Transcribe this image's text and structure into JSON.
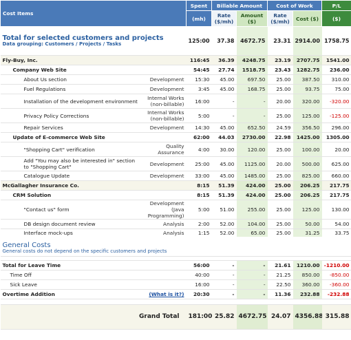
{
  "header": {
    "cost_items": "Cost Items",
    "spent": "Spent",
    "spent_unit": "(mh)",
    "billable": "Billable Amount",
    "cost_of_work": "Cost of Work",
    "pl": "P/L",
    "b_rate": "Rate ($/mh)",
    "b_amount": "Amount ($)",
    "c_rate": "Rate ($/mh)",
    "c_cost": "Cost ($)",
    "pl_unit": "($)"
  },
  "total": {
    "title": "Total for selected customers and projects",
    "subtitle": "Data grouping: Customers / Projects / Tasks",
    "values": [
      "125:00",
      "37.38",
      "4672.75",
      "23.31",
      "2914.00",
      "1758.75"
    ]
  },
  "customers": [
    {
      "name": "Fly-Buy, Inc.",
      "values": [
        "116:45",
        "36.39",
        "4248.75",
        "23.19",
        "2707.75",
        "1541.00"
      ],
      "projects": [
        {
          "name": "Company Web Site",
          "values": [
            "54:45",
            "27.74",
            "1518.75",
            "23.43",
            "1282.75",
            "236.00"
          ],
          "tasks": [
            {
              "name": "About Us section",
              "kind": "Development",
              "values": [
                "15:30",
                "45.00",
                "697.50",
                "25.00",
                "387.50",
                "310.00"
              ]
            },
            {
              "name": "Fuel Regulations",
              "kind": "Development",
              "values": [
                "3:45",
                "45.00",
                "168.75",
                "25.00",
                "93.75",
                "75.00"
              ]
            },
            {
              "name": "Installation of the development environment",
              "kind": "Internal Works (non-billable)",
              "values": [
                "16:00",
                "-",
                "-",
                "20.00",
                "320.00",
                "-320.00"
              ]
            },
            {
              "name": "Privacy Policy Corrections",
              "kind": "Internal Works (non-billable)",
              "values": [
                "5:00",
                "-",
                "-",
                "25.00",
                "125.00",
                "-125.00"
              ]
            },
            {
              "name": "Repair Services",
              "kind": "Development",
              "values": [
                "14:30",
                "45.00",
                "652.50",
                "24.59",
                "356.50",
                "296.00"
              ]
            }
          ]
        },
        {
          "name": "Update of E-commerce Web Site",
          "values": [
            "62:00",
            "44.03",
            "2730.00",
            "22.98",
            "1425.00",
            "1305.00"
          ],
          "tasks": [
            {
              "name": "\"Shopping Cart\" verification",
              "kind": "Quality Assurance",
              "values": [
                "4:00",
                "30.00",
                "120.00",
                "25.00",
                "100.00",
                "20.00"
              ]
            },
            {
              "name": "Add \"You may also be interested in\" section to \"Shopping Cart\"",
              "kind": "Development",
              "values": [
                "25:00",
                "45.00",
                "1125.00",
                "20.00",
                "500.00",
                "625.00"
              ]
            },
            {
              "name": "Catalogue Update",
              "kind": "Development",
              "values": [
                "33:00",
                "45.00",
                "1485.00",
                "25.00",
                "825.00",
                "660.00"
              ]
            }
          ]
        }
      ]
    },
    {
      "name": "McGallagher Insurance Co.",
      "values": [
        "8:15",
        "51.39",
        "424.00",
        "25.00",
        "206.25",
        "217.75"
      ],
      "projects": [
        {
          "name": "CRM Solution",
          "values": [
            "8:15",
            "51.39",
            "424.00",
            "25.00",
            "206.25",
            "217.75"
          ],
          "tasks": [
            {
              "name": "\"Contact us\" form",
              "kind": "Development (Java Programming)",
              "values": [
                "5:00",
                "51.00",
                "255.00",
                "25.00",
                "125.00",
                "130.00"
              ]
            },
            {
              "name": "DB design document review",
              "kind": "Analysis",
              "values": [
                "2:00",
                "52.00",
                "104.00",
                "25.00",
                "50.00",
                "54.00"
              ]
            },
            {
              "name": "Interface mock-ups",
              "kind": "Analysis",
              "values": [
                "1:15",
                "52.00",
                "65.00",
                "25.00",
                "31.25",
                "33.75"
              ]
            }
          ]
        }
      ]
    }
  ],
  "general": {
    "title": "General Costs",
    "note": "General costs do not depend on the specific customers and projects",
    "groups": [
      {
        "name": "Total for Leave Time",
        "values": [
          "56:00",
          "-",
          "-",
          "21.61",
          "1210.00",
          "-1210.00"
        ],
        "items": [
          {
            "name": "Time Off",
            "values": [
              "40:00",
              "-",
              "-",
              "21.25",
              "850.00",
              "-850.00"
            ]
          },
          {
            "name": "Sick Leave",
            "values": [
              "16:00",
              "-",
              "-",
              "22.50",
              "360.00",
              "-360.00"
            ]
          }
        ]
      },
      {
        "name": "Overtime Addition",
        "link": "(What is it?)",
        "values": [
          "20:30",
          "-",
          "-",
          "11.36",
          "232.88",
          "-232.88"
        ],
        "items": []
      }
    ]
  },
  "grand_total": {
    "label": "Grand Total",
    "values": [
      "181:00",
      "25.82",
      "4672.75",
      "24.07",
      "4356.88",
      "315.88"
    ]
  }
}
